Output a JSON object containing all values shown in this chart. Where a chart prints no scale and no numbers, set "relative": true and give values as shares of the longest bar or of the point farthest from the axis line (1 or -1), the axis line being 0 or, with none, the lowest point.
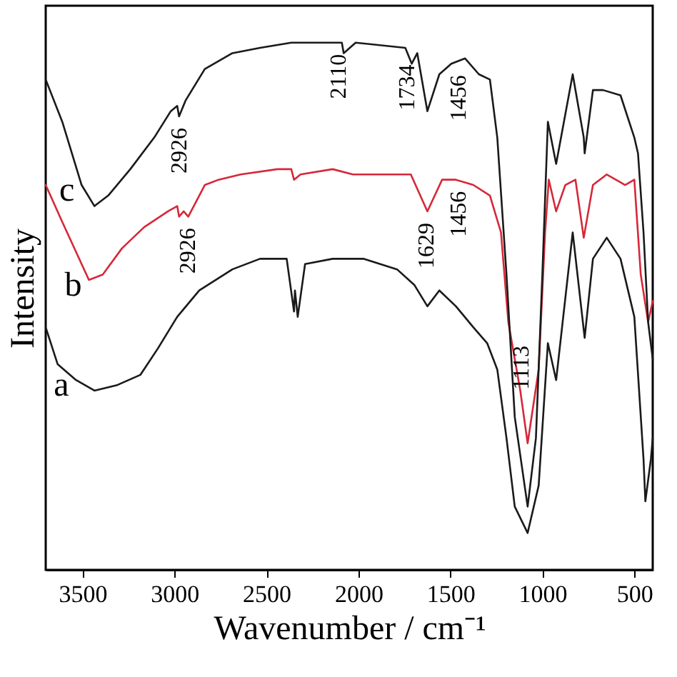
{
  "chart_data": {
    "type": "line",
    "relative": true,
    "xlabel": "Wavenumber / cm⁻¹",
    "ylabel": "Intensity",
    "xlim": [
      3700,
      400
    ],
    "xticks": [
      3500,
      3000,
      2500,
      2000,
      1500,
      1000,
      500
    ],
    "series": [
      {
        "name": "a",
        "color": "#1a1a1a",
        "x": [
          3700,
          3635,
          3535,
          3435,
          3315,
          3185,
          3090,
          2985,
          2865,
          2685,
          2535,
          2390,
          2350,
          2345,
          2330,
          2290,
          2140,
          1970,
          1790,
          1695,
          1625,
          1560,
          1470,
          1375,
          1300,
          1245,
          1195,
          1150,
          1080,
          1020,
          970,
          925,
          835,
          770,
          725,
          650,
          575,
          500,
          450,
          440,
          410,
          400
        ],
        "values": [
          0.46,
          0.39,
          0.36,
          0.34,
          0.35,
          0.37,
          0.42,
          0.48,
          0.53,
          0.57,
          0.59,
          0.59,
          0.49,
          0.53,
          0.48,
          0.58,
          0.59,
          0.59,
          0.57,
          0.54,
          0.5,
          0.53,
          0.5,
          0.46,
          0.43,
          0.38,
          0.25,
          0.12,
          0.07,
          0.16,
          0.43,
          0.36,
          0.64,
          0.44,
          0.59,
          0.63,
          0.59,
          0.48,
          0.21,
          0.13,
          0.21,
          0.25
        ]
      },
      {
        "name": "b",
        "color": "#d62839",
        "x": [
          3700,
          3610,
          3465,
          3390,
          3285,
          3165,
          3035,
          2985,
          2975,
          2950,
          2925,
          2835,
          2760,
          2640,
          2440,
          2365,
          2350,
          2315,
          2140,
          2030,
          1970,
          1715,
          1625,
          1545,
          1470,
          1375,
          1285,
          1225,
          1185,
          1120,
          1080,
          1020,
          985,
          965,
          925,
          875,
          820,
          775,
          725,
          650,
          550,
          500,
          465,
          425,
          400
        ],
        "values": [
          0.73,
          0.66,
          0.55,
          0.56,
          0.61,
          0.65,
          0.68,
          0.69,
          0.67,
          0.68,
          0.67,
          0.73,
          0.74,
          0.75,
          0.76,
          0.76,
          0.74,
          0.75,
          0.76,
          0.75,
          0.75,
          0.75,
          0.68,
          0.74,
          0.74,
          0.73,
          0.71,
          0.64,
          0.47,
          0.34,
          0.24,
          0.38,
          0.64,
          0.74,
          0.68,
          0.73,
          0.74,
          0.63,
          0.73,
          0.75,
          0.73,
          0.74,
          0.56,
          0.47,
          0.51
        ]
      },
      {
        "name": "c",
        "color": "#1a1a1a",
        "x": [
          3700,
          3610,
          3505,
          3435,
          3360,
          3240,
          3110,
          3020,
          2985,
          2975,
          2940,
          2835,
          2685,
          2535,
          2365,
          2290,
          2140,
          2090,
          2080,
          2015,
          1745,
          1710,
          1680,
          1625,
          1560,
          1495,
          1420,
          1345,
          1285,
          1245,
          1195,
          1150,
          1080,
          1035,
          1000,
          970,
          925,
          835,
          775,
          770,
          725,
          670,
          575,
          500,
          480,
          450,
          425,
          400
        ],
        "values": [
          0.93,
          0.85,
          0.73,
          0.69,
          0.71,
          0.76,
          0.82,
          0.87,
          0.88,
          0.86,
          0.89,
          0.95,
          0.98,
          0.99,
          1.0,
          1.0,
          1.0,
          1.0,
          0.98,
          1.0,
          0.99,
          0.96,
          0.98,
          0.87,
          0.94,
          0.96,
          0.97,
          0.94,
          0.93,
          0.82,
          0.56,
          0.29,
          0.12,
          0.25,
          0.56,
          0.85,
          0.77,
          0.94,
          0.82,
          0.79,
          0.91,
          0.91,
          0.9,
          0.82,
          0.79,
          0.64,
          0.47,
          0.4
        ]
      }
    ],
    "annotations": [
      {
        "text": "2926",
        "x": 2975,
        "y": 0.86
      },
      {
        "text": "2926",
        "x": 2926,
        "y": 0.67
      },
      {
        "text": "2110",
        "x": 2110,
        "y": 1.0
      },
      {
        "text": "1734",
        "x": 1734,
        "y": 0.98
      },
      {
        "text": "1456",
        "x": 1456,
        "y": 0.96
      },
      {
        "text": "1629",
        "x": 1629,
        "y": 0.68
      },
      {
        "text": "1456",
        "x": 1456,
        "y": 0.74
      },
      {
        "text": "1113",
        "x": 1113,
        "y": 0.32
      }
    ]
  }
}
